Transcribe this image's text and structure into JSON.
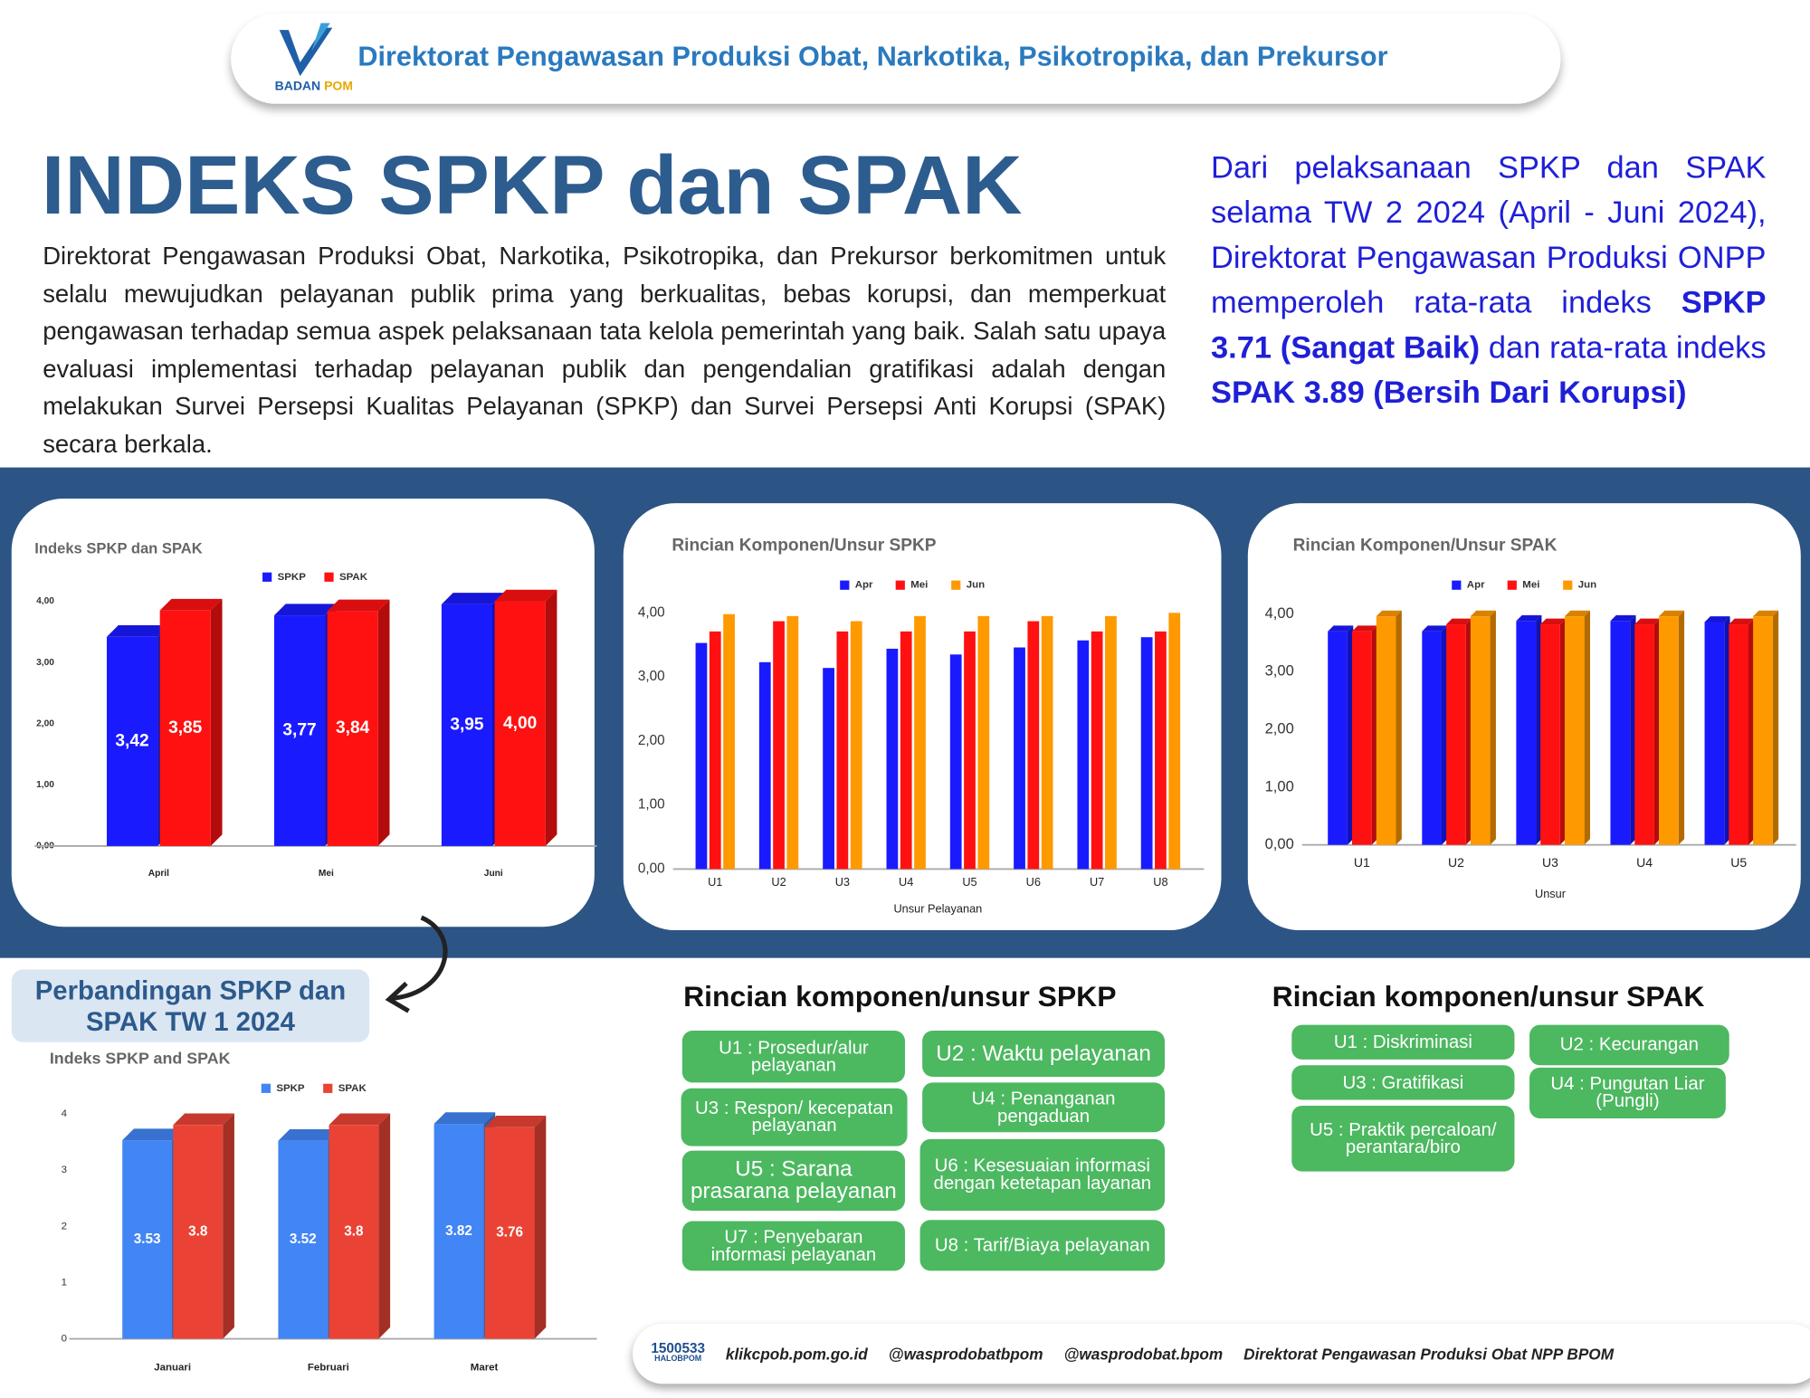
{
  "header": {
    "logo": {
      "name": "BADAN",
      "accent": "POM"
    },
    "title": "Direktorat Pengawasan Produksi Obat, Narkotika, Psikotropika, dan Prekursor"
  },
  "title": "INDEKS SPKP dan SPAK",
  "intro": "Direktorat Pengawasan Produksi Obat, Narkotika, Psikotropika, dan Prekursor berkomitmen untuk selalu mewujudkan pelayanan publik prima yang berkualitas, bebas korupsi, dan memperkuat pengawasan terhadap semua aspek pelaksanaan tata kelola pemerintah yang baik. Salah satu upaya evaluasi implementasi terhadap pelayanan publik dan pengendalian gratifikasi adalah dengan melakukan Survei Persepsi Kualitas Pelayanan (SPKP) dan Survei Persepsi Anti Korupsi (SPAK) secara berkala.",
  "summary": [
    {
      "text": "Dari pelaksanaan SPKP dan SPAK selama TW 2 2024 (April - Juni 2024), Direktorat Pengawasan Produksi ONPP memperoleh rata-rata indeks ",
      "bold": false
    },
    {
      "text": "SPKP 3.71 (Sangat Baik)",
      "bold": true
    },
    {
      "text": " dan rata-rata indeks ",
      "bold": false
    },
    {
      "text": "SPAK 3.89 (Bersih Dari Korupsi)",
      "bold": true
    }
  ],
  "comparison_title": "Perbandingan SPKP dan SPAK TW 1 2024",
  "chart_data": [
    {
      "type": "bar",
      "title": "Indeks SPKP dan SPAK",
      "categories": [
        "April",
        "Mei",
        "Juni"
      ],
      "series": [
        {
          "name": "SPKP",
          "color": "#1a1aff",
          "values": [
            3.42,
            3.77,
            3.95
          ],
          "value_labels": [
            "3,42",
            "3,77",
            "3,95"
          ]
        },
        {
          "name": "SPAK",
          "color": "#ff1111",
          "values": [
            3.85,
            3.84,
            4.0
          ],
          "value_labels": [
            "3,85",
            "3,84",
            "4,00"
          ]
        }
      ],
      "ylim": [
        0,
        4
      ],
      "yticks": [
        {
          "value": 0,
          "label": "0,00"
        },
        {
          "value": 1,
          "label": "1,00"
        },
        {
          "value": 2,
          "label": "2,00"
        },
        {
          "value": 3,
          "label": "3,00"
        },
        {
          "value": 4,
          "label": "4,00"
        }
      ],
      "grid": false
    },
    {
      "type": "bar",
      "title": "Rincian Komponen/Unsur SPKP",
      "categories": [
        "U1",
        "U2",
        "U3",
        "U4",
        "U5",
        "U6",
        "U7",
        "U8"
      ],
      "xlabel": "Unsur Pelayanan",
      "series": [
        {
          "name": "Apr",
          "color": "#1a1aff",
          "values": [
            3.53,
            3.23,
            3.14,
            3.44,
            3.35,
            3.46,
            3.57,
            3.62
          ]
        },
        {
          "name": "Mei",
          "color": "#ff1111",
          "values": [
            3.71,
            3.87,
            3.71,
            3.71,
            3.71,
            3.87,
            3.71,
            3.71
          ]
        },
        {
          "name": "Jun",
          "color": "#ff9900",
          "values": [
            3.98,
            3.95,
            3.87,
            3.95,
            3.95,
            3.95,
            3.95,
            4.0
          ]
        }
      ],
      "ylim": [
        0,
        4
      ],
      "yticks": [
        {
          "value": 0,
          "label": "0,00"
        },
        {
          "value": 1,
          "label": "1,00"
        },
        {
          "value": 2,
          "label": "2,00"
        },
        {
          "value": 3,
          "label": "3,00"
        },
        {
          "value": 4,
          "label": "4,00"
        }
      ],
      "grid": false
    },
    {
      "type": "bar",
      "title": "Rincian Komponen/Unsur SPAK",
      "categories": [
        "U1",
        "U2",
        "U3",
        "U4",
        "U5"
      ],
      "xlabel": "Unsur",
      "series": [
        {
          "name": "Apr",
          "color": "#1a1aff",
          "values": [
            3.7,
            3.7,
            3.88,
            3.88,
            3.86
          ]
        },
        {
          "name": "Mei",
          "color": "#ff1111",
          "values": [
            3.7,
            3.82,
            3.82,
            3.82,
            3.82
          ]
        },
        {
          "name": "Jun",
          "color": "#ff9900",
          "values": [
            3.96,
            3.96,
            3.96,
            3.96,
            3.96
          ]
        }
      ],
      "ylim": [
        0,
        4
      ],
      "yticks": [
        {
          "value": 0,
          "label": "0,00"
        },
        {
          "value": 1,
          "label": "1,00"
        },
        {
          "value": 2,
          "label": "2,00"
        },
        {
          "value": 3,
          "label": "3,00"
        },
        {
          "value": 4,
          "label": "4,00"
        }
      ],
      "grid": false
    },
    {
      "type": "bar",
      "title": "Indeks SPKP and SPAK",
      "categories": [
        "Januari",
        "Februari",
        "Maret"
      ],
      "series": [
        {
          "name": "SPKP",
          "color": "#4285f4",
          "values": [
            3.53,
            3.52,
            3.82
          ]
        },
        {
          "name": "SPAK",
          "color": "#ea4335",
          "values": [
            3.8,
            3.8,
            3.76
          ]
        }
      ],
      "ylim": [
        0,
        4
      ],
      "yticks": [
        0,
        1,
        2,
        3,
        4
      ],
      "grid": false,
      "data_labels": true
    }
  ],
  "spkp_components": {
    "title": "Rincian komponen/unsur SPKP",
    "items": [
      "U1 : Prosedur/alur pelayanan",
      "U2 : Waktu pelayanan",
      "U3 : Respon/ kecepatan pelayanan",
      "U4 : Penanganan pengaduan",
      "U5 : Sarana prasarana pelayanan",
      "U6 : Kesesuaian informasi dengan ketetapan layanan",
      "U7 : Penyebaran informasi pelayanan",
      "U8 : Tarif/Biaya pelayanan"
    ]
  },
  "spak_components": {
    "title": "Rincian komponen/unsur SPAK",
    "items": [
      "U1 : Diskriminasi",
      "U2 : Kecurangan",
      "U3 : Gratifikasi",
      "U4 : Pungutan Liar (Pungli)",
      "U5 : Praktik percaloan/ perantara/biro"
    ]
  },
  "footer": {
    "hotline": "1500533",
    "hotline_name": "HALOBPOM",
    "items": [
      "klikcpob.pom.go.id",
      "@wasprodobatbpom",
      "@wasprodobat.bpom",
      "Direktorat Pengawasan Produksi Obat NPP BPOM"
    ]
  }
}
